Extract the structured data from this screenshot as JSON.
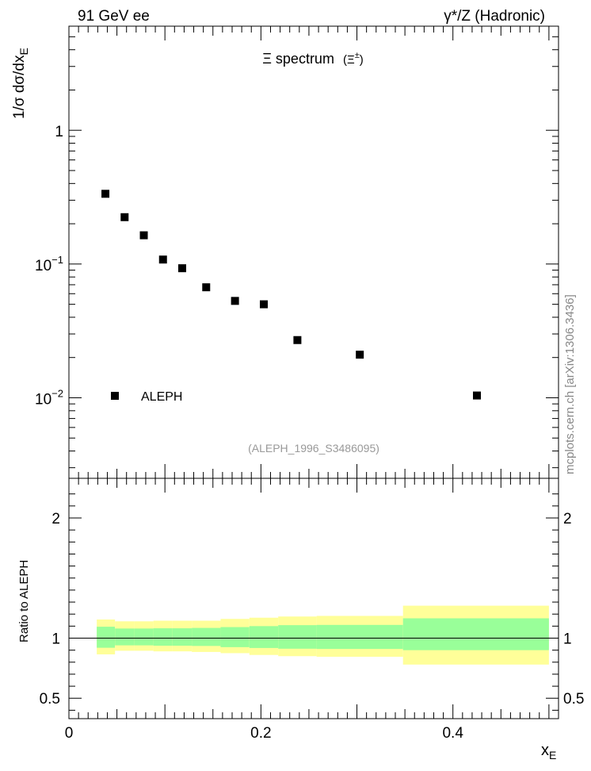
{
  "chart_data": [
    {
      "type": "scatter",
      "top_left_label": "91 GeV ee",
      "top_right_label": "γ*/Z (Hadronic)",
      "title": "Ξ spectrum",
      "title_suffix": "(Ξ",
      "title_suffix_sup": "±",
      "title_suffix_close": ")",
      "ylabel": "1/σ dσ/dx",
      "ylabel_sub": "E",
      "y_scale": "log",
      "ylim": [
        0.0025,
        6
      ],
      "xlim": [
        0,
        0.51
      ],
      "y_ticks": [
        {
          "base": "10",
          "exp": "−2",
          "value": 0.01
        },
        {
          "base": "10",
          "exp": "−1",
          "value": 0.1
        },
        {
          "base": "1",
          "exp": "",
          "value": 1
        }
      ],
      "legend": {
        "label": "ALEPH",
        "placement": "lower-left"
      },
      "series": [
        {
          "name": "ALEPH",
          "marker": "square",
          "color": "#000000",
          "x": [
            0.038,
            0.058,
            0.078,
            0.098,
            0.118,
            0.143,
            0.173,
            0.203,
            0.238,
            0.303,
            0.425
          ],
          "y": [
            0.335,
            0.224,
            0.164,
            0.108,
            0.093,
            0.067,
            0.053,
            0.05,
            0.027,
            0.021,
            0.0104
          ]
        }
      ],
      "annotation": "(ALEPH_1996_S3486095)",
      "side_label": "mcplots.cern.ch [arXiv:1306.3436]"
    },
    {
      "type": "area",
      "ylabel": "Ratio to ALEPH",
      "xlabel": "x",
      "xlabel_sub": "E",
      "xlim": [
        0,
        0.51
      ],
      "ylim": [
        0.33,
        2.33
      ],
      "y_ticks": [
        0.5,
        1,
        2
      ],
      "y_tick_labels": [
        "0.5",
        "1",
        "2"
      ],
      "x_ticks": [
        0,
        0.2,
        0.4
      ],
      "x_tick_labels": [
        "0",
        "0.2",
        "0.4"
      ],
      "reference_line": 1,
      "bands": {
        "outer_color": "#ffff99",
        "inner_color": "#99ff99",
        "bins": [
          {
            "x0": 0.029,
            "x1": 0.048,
            "outer": [
              0.865,
              1.155
            ],
            "inner": [
              0.92,
              1.095
            ]
          },
          {
            "x0": 0.048,
            "x1": 0.068,
            "outer": [
              0.895,
              1.14
            ],
            "inner": [
              0.94,
              1.08
            ]
          },
          {
            "x0": 0.068,
            "x1": 0.088,
            "outer": [
              0.895,
              1.14
            ],
            "inner": [
              0.94,
              1.08
            ]
          },
          {
            "x0": 0.088,
            "x1": 0.108,
            "outer": [
              0.89,
              1.145
            ],
            "inner": [
              0.937,
              1.082
            ]
          },
          {
            "x0": 0.108,
            "x1": 0.128,
            "outer": [
              0.89,
              1.145
            ],
            "inner": [
              0.937,
              1.082
            ]
          },
          {
            "x0": 0.128,
            "x1": 0.158,
            "outer": [
              0.885,
              1.145
            ],
            "inner": [
              0.935,
              1.085
            ]
          },
          {
            "x0": 0.158,
            "x1": 0.188,
            "outer": [
              0.875,
              1.16
            ],
            "inner": [
              0.925,
              1.092
            ]
          },
          {
            "x0": 0.188,
            "x1": 0.218,
            "outer": [
              0.86,
              1.17
            ],
            "inner": [
              0.918,
              1.1
            ]
          },
          {
            "x0": 0.218,
            "x1": 0.258,
            "outer": [
              0.85,
              1.18
            ],
            "inner": [
              0.912,
              1.108
            ]
          },
          {
            "x0": 0.258,
            "x1": 0.348,
            "outer": [
              0.845,
              1.185
            ],
            "inner": [
              0.91,
              1.11
            ]
          },
          {
            "x0": 0.348,
            "x1": 0.5,
            "outer": [
              0.78,
              1.27
            ],
            "inner": [
              0.9,
              1.165
            ]
          }
        ]
      }
    }
  ]
}
